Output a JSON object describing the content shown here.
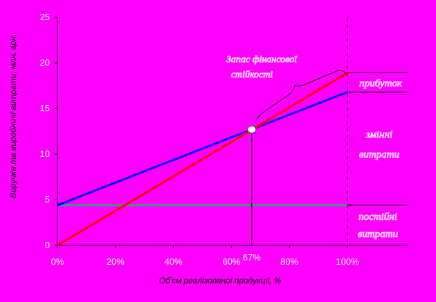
{
  "chart_data": {
    "type": "line",
    "background": "#ff00ff",
    "x_ticks": [
      "0%",
      "20%",
      "40%",
      "60%",
      "80%",
      "100%"
    ],
    "y_ticks": [
      "0",
      "5",
      "10",
      "15",
      "20",
      "25"
    ],
    "xlabel": "Об'єм реалізованої продукції, %",
    "ylabel": "Виручка та виробничі витрати, млн. грн.",
    "xlim": [
      0,
      100
    ],
    "ylim": [
      0,
      25
    ],
    "grid": false,
    "series": [
      {
        "key": "revenue",
        "color": "#ff0000",
        "x": [
          0,
          100
        ],
        "y": [
          0,
          18.9
        ]
      },
      {
        "key": "total_costs",
        "color": "#0000ff",
        "x": [
          0,
          100
        ],
        "y": [
          4.4,
          16.8
        ]
      },
      {
        "key": "fixed_costs",
        "color": "#2e9c8c",
        "x": [
          0,
          100
        ],
        "y": [
          4.4,
          4.4
        ]
      }
    ],
    "break_even": {
      "x": 67,
      "y": 12.7,
      "label": "67%"
    },
    "annotations": {
      "margin_line1": "Запас фінансової",
      "margin_line2": "стійкості",
      "profit": "прибуток",
      "variable_line1": "змінні",
      "variable_line2": "витрати",
      "fixed_line1": "постійні",
      "fixed_line2": "витрати"
    }
  }
}
